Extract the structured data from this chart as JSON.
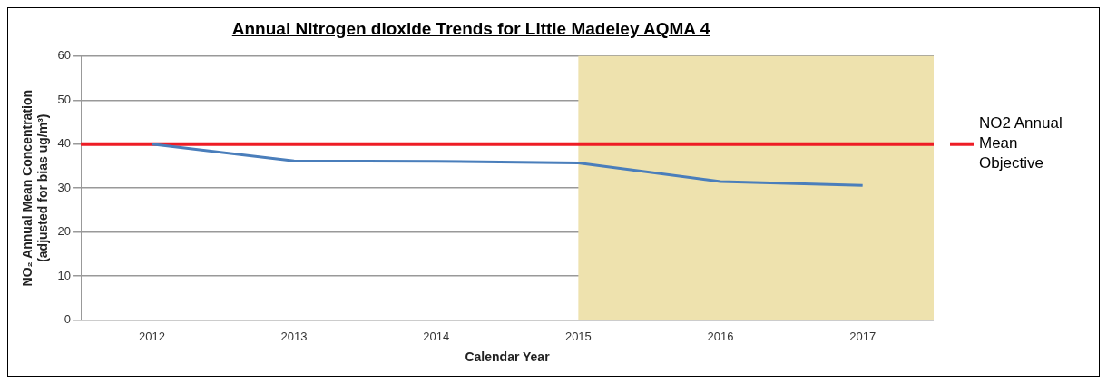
{
  "chart_data": {
    "type": "line",
    "title": "Annual Nitrogen dioxide Trends for Little Madeley AQMA 4",
    "xlabel": "Calendar Year",
    "ylabel": "NO₂ Annual Mean Concentration\n(adjusted for bias ug/m³)",
    "x": [
      2012,
      2013,
      2014,
      2015,
      2016,
      2017
    ],
    "series": [
      {
        "color": "#4a7ebb",
        "values": [
          40,
          36.2,
          36.1,
          35.7,
          31.5,
          30.6
        ]
      }
    ],
    "xlim": [
      2011.5,
      2017.5
    ],
    "xticks": [
      2012,
      2013,
      2014,
      2015,
      2016,
      2017
    ],
    "ylim": [
      0,
      60
    ],
    "yticks": [
      0,
      10,
      20,
      30,
      40,
      50,
      60
    ],
    "grid": "y",
    "legend": false,
    "marker": "none",
    "line_style": "solid",
    "ref_lines": [
      {
        "axis": "y",
        "value": 40,
        "label": "NO2 Annual Mean Objective",
        "color": "#ee1c25"
      }
    ],
    "bands": [
      {
        "axis": "x",
        "from": 2015,
        "to": 2017.5,
        "color": "#eee2ae"
      }
    ]
  }
}
